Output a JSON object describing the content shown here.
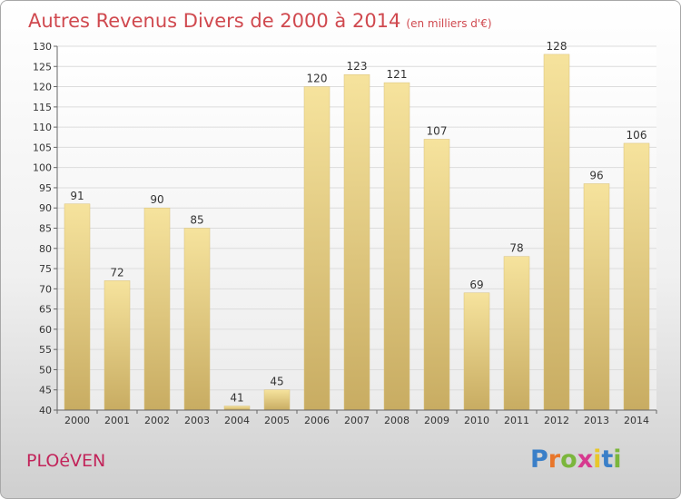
{
  "title": "Autres Revenus Divers de 2000 à 2014",
  "subtitle": "(en milliers d'€)",
  "commune": "PLOéVEN",
  "logo": {
    "letters": [
      "P",
      "r",
      "o",
      "x",
      "i",
      "t",
      "i"
    ],
    "colors": [
      "#3a7fc8",
      "#e8762a",
      "#7bb63c",
      "#d73a8f",
      "#e8c72a",
      "#3a7fc8",
      "#7bb63c"
    ]
  },
  "chart_data": {
    "type": "bar",
    "categories": [
      "2000",
      "2001",
      "2002",
      "2003",
      "2004",
      "2005",
      "2006",
      "2007",
      "2008",
      "2009",
      "2010",
      "2011",
      "2012",
      "2013",
      "2014"
    ],
    "values": [
      91,
      72,
      90,
      85,
      41,
      45,
      120,
      123,
      121,
      107,
      69,
      78,
      128,
      96,
      106
    ],
    "ylim": [
      40,
      130
    ],
    "yticks": [
      40,
      45,
      50,
      55,
      60,
      65,
      70,
      75,
      80,
      85,
      90,
      95,
      100,
      105,
      110,
      115,
      120,
      125,
      130
    ],
    "grid": true,
    "bar_color": "#e8cf86"
  }
}
